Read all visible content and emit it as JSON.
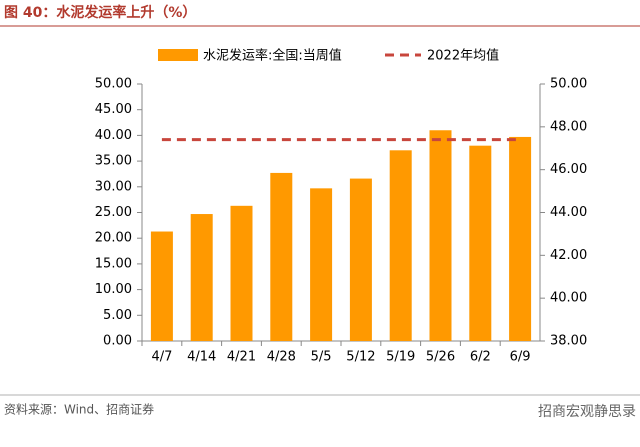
{
  "header": {
    "title": "图 40：水泥发运率上升（%）"
  },
  "chart_data": {
    "type": "bar",
    "categories": [
      "4/7",
      "4/14",
      "4/21",
      "4/28",
      "5/5",
      "5/12",
      "5/19",
      "5/26",
      "6/2",
      "6/9"
    ],
    "series": [
      {
        "name": "水泥发运率:全国:当周值",
        "type": "bar",
        "color": "#FF9900",
        "values": [
          21.3,
          24.7,
          26.3,
          32.7,
          29.7,
          31.6,
          37.1,
          41.0,
          38.0,
          39.7
        ]
      },
      {
        "name": "2022年均值",
        "type": "line",
        "axis": "y2",
        "color": "#C8463C",
        "values": [
          47.4,
          47.4,
          47.4,
          47.4,
          47.4,
          47.4,
          47.4,
          47.4,
          47.4,
          47.4
        ]
      }
    ],
    "ylim": [
      0,
      50
    ],
    "yticks": [
      {
        "value": 0,
        "label": "0.00"
      },
      {
        "value": 5,
        "label": "5.00"
      },
      {
        "value": 10,
        "label": "10.00"
      },
      {
        "value": 15,
        "label": "15.00"
      },
      {
        "value": 20,
        "label": "20.00"
      },
      {
        "value": 25,
        "label": "25.00"
      },
      {
        "value": 30,
        "label": "30.00"
      },
      {
        "value": 35,
        "label": "35.00"
      },
      {
        "value": 40,
        "label": "40.00"
      },
      {
        "value": 45,
        "label": "45.00"
      },
      {
        "value": 50,
        "label": "50.00"
      }
    ],
    "y2lim": [
      38,
      50
    ],
    "y2ticks": [
      {
        "value": 38,
        "label": "38.00"
      },
      {
        "value": 40,
        "label": "40.00"
      },
      {
        "value": 42,
        "label": "42.00"
      },
      {
        "value": 44,
        "label": "44.00"
      },
      {
        "value": 46,
        "label": "46.00"
      },
      {
        "value": 48,
        "label": "48.00"
      },
      {
        "value": 50,
        "label": "50.00"
      }
    ]
  },
  "footer": {
    "source": "资料来源：Wind、招商证券",
    "watermark": "招商宏观静思录"
  }
}
